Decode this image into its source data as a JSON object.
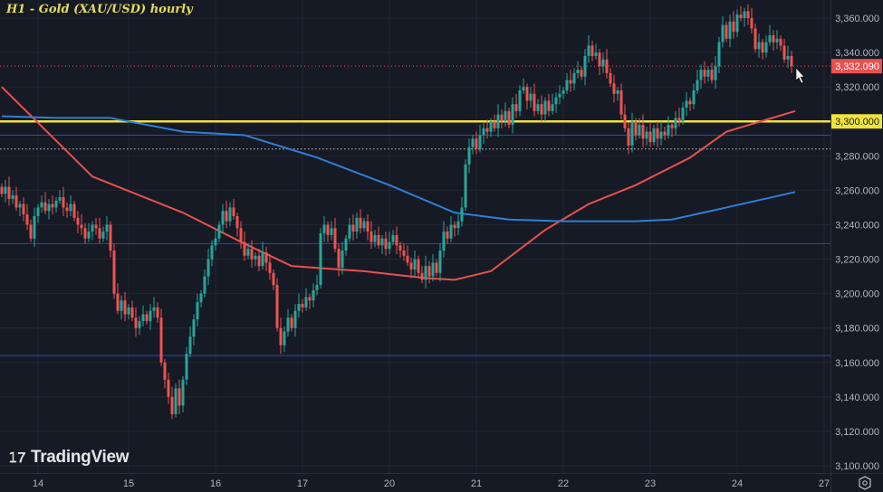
{
  "chart_data": {
    "type": "candlestick",
    "title": "H1 - Gold (XAU/USD) hourly",
    "symbol": "XAU/USD",
    "timeframe": "hourly",
    "ylim": [
      3095,
      3370
    ],
    "y_ticks": [
      3100,
      3120,
      3140,
      3160,
      3180,
      3200,
      3220,
      3240,
      3260,
      3280,
      3300,
      3320,
      3340,
      3360
    ],
    "y_tick_labels": [
      "3,100.000",
      "3,120.000",
      "3,140.000",
      "3,160.000",
      "3,180.000",
      "3,200.000",
      "3,220.000",
      "3,240.000",
      "3,260.000",
      "3,280.000",
      "3,300.000",
      "3,320.000",
      "3,340.000",
      "3,360.000"
    ],
    "x_ticks": [
      {
        "label": "14",
        "index": 10
      },
      {
        "label": "15",
        "index": 35
      },
      {
        "label": "16",
        "index": 59
      },
      {
        "label": "17",
        "index": 83
      },
      {
        "label": "20",
        "index": 107
      },
      {
        "label": "21",
        "index": 131
      },
      {
        "label": "22",
        "index": 155
      },
      {
        "label": "23",
        "index": 179
      },
      {
        "label": "24",
        "index": 203
      },
      {
        "label": "27",
        "index": 227
      }
    ],
    "first_open": 3262,
    "closes": [
      3258,
      3262,
      3255,
      3257,
      3250,
      3252,
      3246,
      3240,
      3232,
      3245,
      3250,
      3253,
      3248,
      3252,
      3250,
      3254,
      3256,
      3250,
      3248,
      3252,
      3244,
      3240,
      3238,
      3232,
      3236,
      3240,
      3238,
      3232,
      3236,
      3240,
      3225,
      3200,
      3190,
      3196,
      3188,
      3192,
      3186,
      3180,
      3184,
      3188,
      3184,
      3190,
      3192,
      3186,
      3160,
      3150,
      3140,
      3130,
      3145,
      3135,
      3150,
      3165,
      3175,
      3185,
      3195,
      3200,
      3210,
      3220,
      3228,
      3232,
      3240,
      3248,
      3242,
      3250,
      3245,
      3238,
      3230,
      3222,
      3226,
      3220,
      3222,
      3216,
      3224,
      3218,
      3212,
      3205,
      3180,
      3170,
      3178,
      3186,
      3180,
      3190,
      3194,
      3192,
      3198,
      3196,
      3202,
      3205,
      3235,
      3240,
      3234,
      3238,
      3226,
      3215,
      3225,
      3232,
      3240,
      3236,
      3244,
      3238,
      3242,
      3236,
      3230,
      3234,
      3228,
      3232,
      3226,
      3230,
      3234,
      3228,
      3225,
      3222,
      3218,
      3214,
      3220,
      3212,
      3208,
      3216,
      3210,
      3218,
      3212,
      3225,
      3236,
      3232,
      3240,
      3238,
      3242,
      3250,
      3275,
      3285,
      3290,
      3284,
      3292,
      3296,
      3294,
      3300,
      3296,
      3304,
      3300,
      3306,
      3298,
      3310,
      3306,
      3318,
      3320,
      3312,
      3316,
      3306,
      3310,
      3304,
      3312,
      3306,
      3310,
      3314,
      3316,
      3318,
      3324,
      3322,
      3328,
      3330,
      3326,
      3338,
      3344,
      3338,
      3340,
      3332,
      3336,
      3328,
      3322,
      3316,
      3318,
      3304,
      3296,
      3286,
      3300,
      3292,
      3298,
      3290,
      3294,
      3288,
      3296,
      3290,
      3294,
      3292,
      3298,
      3296,
      3302,
      3300,
      3308,
      3312,
      3310,
      3318,
      3324,
      3330,
      3326,
      3330,
      3324,
      3332,
      3346,
      3356,
      3348,
      3358,
      3352,
      3362,
      3360,
      3364,
      3360,
      3354,
      3342,
      3346,
      3340,
      3346,
      3350,
      3346,
      3348,
      3344,
      3336,
      3338,
      3332.09
    ],
    "series": [
      {
        "name": "MA red",
        "color": "#e8514f",
        "points": [
          [
            0,
            3320
          ],
          [
            25,
            3268
          ],
          [
            50,
            3247
          ],
          [
            67,
            3229
          ],
          [
            80,
            3216
          ],
          [
            100,
            3213
          ],
          [
            117,
            3209
          ],
          [
            125,
            3208
          ],
          [
            135,
            3213
          ],
          [
            150,
            3237
          ],
          [
            162,
            3252
          ],
          [
            175,
            3263
          ],
          [
            190,
            3279
          ],
          [
            200,
            3294
          ],
          [
            219,
            3306
          ]
        ]
      },
      {
        "name": "MA blue",
        "color": "#2f7fd8",
        "points": [
          [
            0,
            3303
          ],
          [
            15,
            3302
          ],
          [
            30,
            3302
          ],
          [
            50,
            3294
          ],
          [
            67,
            3292
          ],
          [
            87,
            3279
          ],
          [
            107,
            3263
          ],
          [
            125,
            3247
          ],
          [
            140,
            3243
          ],
          [
            155,
            3242
          ],
          [
            175,
            3242
          ],
          [
            185,
            3243
          ],
          [
            200,
            3250
          ],
          [
            219,
            3259
          ]
        ]
      }
    ],
    "horizontal_lines": [
      {
        "price": 3300,
        "label": "3,300.000",
        "color": "#f2e33a",
        "style": "solid-thick"
      },
      {
        "price": 3292,
        "color": "#2a4ab0",
        "style": "solid"
      },
      {
        "price": 3284,
        "color": "#c8c8c8",
        "style": "dotted"
      },
      {
        "price": 3229,
        "color": "#2a4ab0",
        "style": "solid"
      },
      {
        "price": 3164,
        "color": "#2a4ab0",
        "style": "solid"
      }
    ],
    "last_price": {
      "value": 3332.09,
      "label": "3,332.090",
      "color": "#e8514f"
    },
    "up_color": "#26a69a",
    "down_color": "#ef5350"
  },
  "branding": {
    "logo_text": "TradingView",
    "logo_mark": "TV"
  }
}
